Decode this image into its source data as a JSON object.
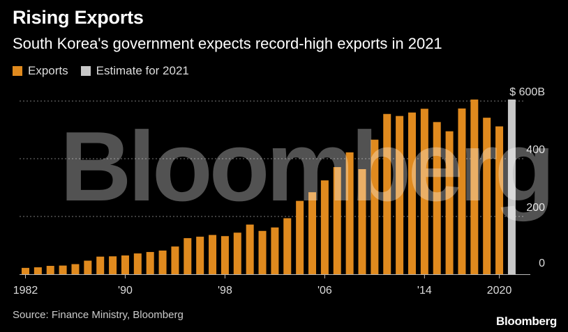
{
  "header": {
    "title": "Rising Exports",
    "subtitle": "South Korea's government expects record-high exports in 2021"
  },
  "legend": [
    {
      "label": "Exports",
      "color": "#E08A1E"
    },
    {
      "label": "Estimate for 2021",
      "color": "#C8C8C8"
    }
  ],
  "footer": {
    "source": "Source: Finance Ministry, Bloomberg",
    "brand": "Bloomberg"
  },
  "watermark": "Bloomberg",
  "chart_data": {
    "type": "bar",
    "categories": [
      1982,
      1983,
      1984,
      1985,
      1986,
      1987,
      1988,
      1989,
      1990,
      1991,
      1992,
      1993,
      1994,
      1995,
      1996,
      1997,
      1998,
      1999,
      2000,
      2001,
      2002,
      2003,
      2004,
      2005,
      2006,
      2007,
      2008,
      2009,
      2010,
      2011,
      2012,
      2013,
      2014,
      2015,
      2016,
      2017,
      2018,
      2019,
      2020,
      2021
    ],
    "series": [
      {
        "name": "Exports",
        "color": "#E08A1E",
        "values": [
          22,
          24,
          29,
          30,
          35,
          47,
          61,
          62,
          65,
          72,
          77,
          82,
          96,
          125,
          130,
          136,
          132,
          144,
          172,
          150,
          162,
          194,
          254,
          284,
          325,
          371,
          422,
          364,
          466,
          555,
          548,
          560,
          573,
          527,
          495,
          574,
          605,
          542,
          512,
          null
        ]
      },
      {
        "name": "Estimate for 2021",
        "color": "#C8C8C8",
        "values": [
          null,
          null,
          null,
          null,
          null,
          null,
          null,
          null,
          null,
          null,
          null,
          null,
          null,
          null,
          null,
          null,
          null,
          null,
          null,
          null,
          null,
          null,
          null,
          null,
          null,
          null,
          null,
          null,
          null,
          null,
          null,
          null,
          null,
          null,
          null,
          null,
          null,
          null,
          null,
          605
        ]
      }
    ],
    "x_tick_labels": [
      "1982",
      "'90",
      "'98",
      "'06",
      "'14",
      "2020"
    ],
    "y_ticks": [
      0,
      200,
      400,
      600
    ],
    "y_tick_labels": [
      "0",
      "200",
      "400",
      "$ 600B"
    ],
    "ylim": [
      0,
      605
    ],
    "grid": true,
    "y_axis_side": "right"
  }
}
